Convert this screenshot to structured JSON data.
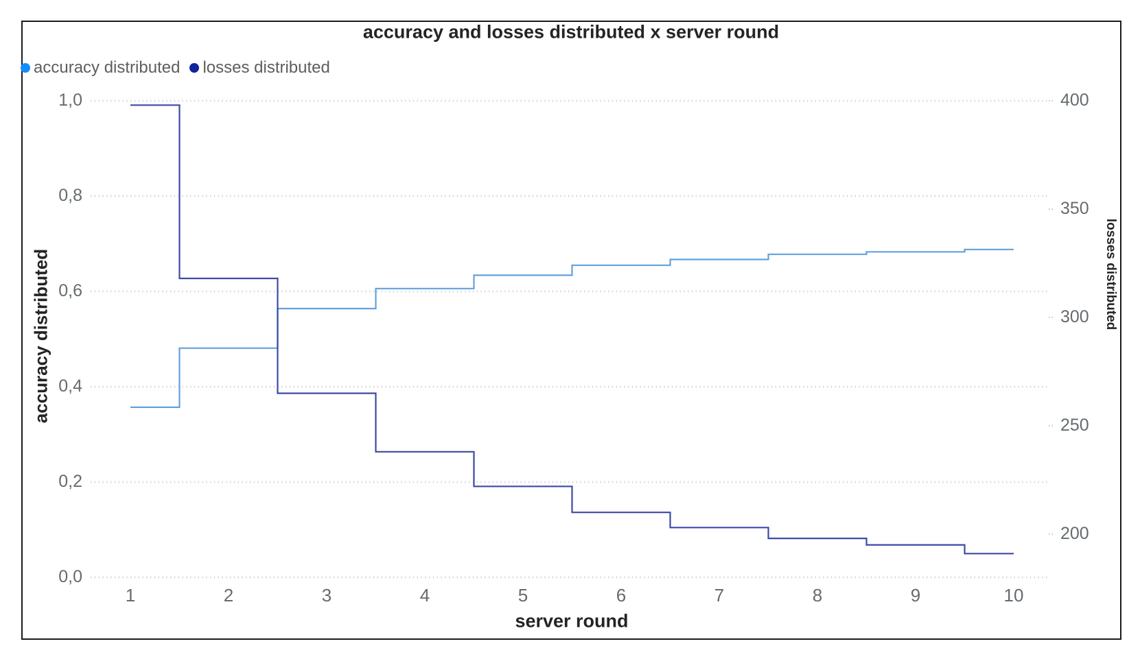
{
  "frame": {
    "border_color": "#1a1a1a",
    "background": "#ffffff"
  },
  "chart_data": {
    "type": "line",
    "subtype": "stepped",
    "title": "accuracy and losses distributed x server round",
    "xlabel": "server round",
    "ylabel_left": "accuracy distributed",
    "ylabel_right": "losses distributed",
    "grid": "dotted horizontal",
    "legend_position": "top-left",
    "x": [
      1,
      2,
      3,
      4,
      5,
      6,
      7,
      8,
      9,
      10
    ],
    "x_ticks": [
      "1",
      "2",
      "3",
      "4",
      "5",
      "6",
      "7",
      "8",
      "9",
      "10"
    ],
    "left_axis": {
      "min": 0.0,
      "max": 1.0,
      "tick_values": [
        0.0,
        0.2,
        0.4,
        0.6,
        0.8,
        1.0
      ],
      "ticks": [
        "0,0",
        "0,2",
        "0,4",
        "0,6",
        "0,8",
        "1,0"
      ]
    },
    "right_axis": {
      "min": 180,
      "max": 400,
      "tick_values": [
        200,
        250,
        300,
        350,
        400
      ],
      "ticks": [
        "200",
        "250",
        "300",
        "350",
        "400"
      ]
    },
    "series": [
      {
        "name": "accuracy distributed",
        "axis": "left",
        "values": [
          0.357,
          0.481,
          0.564,
          0.606,
          0.634,
          0.655,
          0.667,
          0.678,
          0.683,
          0.688
        ],
        "color": "#63A1DB",
        "dot_color": "#118DFF"
      },
      {
        "name": "losses distributed",
        "axis": "right",
        "values": [
          398,
          318,
          265,
          238,
          222,
          210,
          203,
          198,
          195,
          191
        ],
        "color": "#3D49A5",
        "dot_color": "#12239E"
      }
    ],
    "grid_color": "#D8D8D8",
    "tick_text_color": "#666b6e",
    "title_text_color": "#252423"
  }
}
